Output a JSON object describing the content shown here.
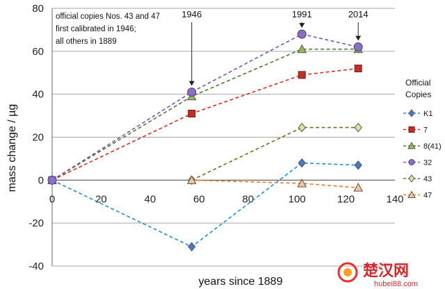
{
  "chart_data": {
    "type": "line",
    "xlabel": "years since 1889",
    "ylabel": "mass change / µg",
    "xlim": [
      0,
      140
    ],
    "ylim": [
      -40,
      80
    ],
    "xticks": [
      0,
      20,
      40,
      60,
      80,
      100,
      120,
      140
    ],
    "yticks": [
      -40,
      -20,
      0,
      20,
      40,
      60,
      80
    ],
    "legend_title": [
      "Official",
      "Copies"
    ],
    "note": [
      "official copies Nos. 43 and 47",
      "first calibrated in 1946;",
      "all others in 1889"
    ],
    "year_markers": [
      {
        "label": "1946",
        "x": 57
      },
      {
        "label": "1991",
        "x": 102
      },
      {
        "label": "2014",
        "x": 125
      }
    ],
    "series": [
      {
        "name": "K1",
        "color": "#1f8fd1",
        "marker": "diamond",
        "markerFill": "#4a78c6",
        "x": [
          0,
          57,
          102,
          125
        ],
        "values": [
          0,
          -31,
          8,
          7
        ]
      },
      {
        "name": "7",
        "color": "#d92b20",
        "marker": "square",
        "markerFill": "#c0302a",
        "x": [
          0,
          57,
          102,
          125
        ],
        "values": [
          0,
          31,
          49,
          52
        ]
      },
      {
        "name": "8(41)",
        "color": "#4b7a2e",
        "marker": "triangle",
        "markerFill": "#98b954",
        "x": [
          0,
          57,
          102,
          125
        ],
        "values": [
          0,
          39,
          61,
          61
        ]
      },
      {
        "name": "32",
        "color": "#7e54a6",
        "marker": "circle",
        "markerFill": "#8a6fc2",
        "x": [
          0,
          57,
          102,
          125
        ],
        "values": [
          0,
          41,
          68,
          62
        ]
      },
      {
        "name": "43",
        "color": "#7d6a28",
        "marker": "diamond",
        "markerFill": "#d7e5a0",
        "x": [
          57,
          102,
          125
        ],
        "values": [
          0,
          24.5,
          24.5
        ]
      },
      {
        "name": "47",
        "color": "#e07b2a",
        "marker": "triangle",
        "markerFill": "#f6c493",
        "x": [
          57,
          102,
          125
        ],
        "values": [
          0,
          -1.5,
          -3.5
        ]
      }
    ]
  },
  "watermark": {
    "text": "楚汉网",
    "url": "hubei88.com"
  }
}
